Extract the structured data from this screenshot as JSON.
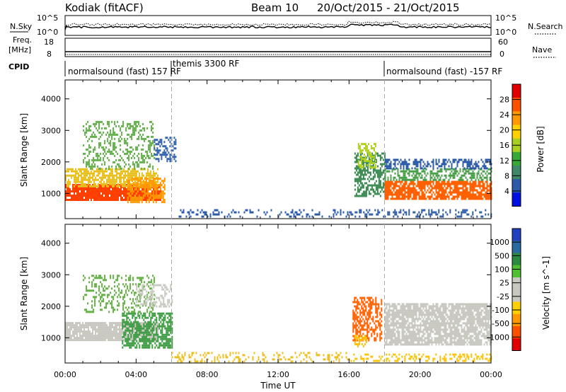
{
  "header": {
    "station": "Kodiak (fitACF)",
    "beam": "Beam 10",
    "dates": "20/Oct/2015 - 21/Oct/2015"
  },
  "top_panels": {
    "nsky_label": "N.Sky",
    "nsky_ticks": [
      "10^5",
      "10^0"
    ],
    "nsearch_label": "N.Search",
    "nsearch_ticks": [
      "10^5",
      "10^0"
    ],
    "freq_label_line1": "Freq.",
    "freq_label_line2": "[MHz]",
    "freq_ticks": [
      "18",
      "8"
    ],
    "nave_label": "Nave",
    "nave_ticks": [
      "60",
      "0"
    ],
    "cpid_label": "CPID",
    "cpid_segments": [
      {
        "text": "normalsound (fast) 157 RF",
        "start": 0
      },
      {
        "text": "themis 3300 RF",
        "start": 6
      },
      {
        "text": "normalsound (fast) -157 RF",
        "start": 18
      }
    ]
  },
  "chart_data": [
    {
      "type": "heatmap",
      "name": "power-panel",
      "ylabel": "Slant Range [km]",
      "xlim": [
        0,
        24
      ],
      "ylim": [
        200,
        4600
      ],
      "y_ticks": [
        1000,
        2000,
        3000,
        4000
      ],
      "colorbar": {
        "label": "Power [dB]",
        "ticks": [
          "28",
          "24",
          "20",
          "16",
          "12",
          "8",
          "4"
        ],
        "colors": [
          "#e00000",
          "#ff5000",
          "#ff9900",
          "#ffd000",
          "#a8d020",
          "#38a838",
          "#40886a",
          "#2a5aa8",
          "#0010e0"
        ]
      },
      "regions": [
        {
          "t": [
            0,
            5.4
          ],
          "r": [
            800,
            1300
          ],
          "color": "#ff4000",
          "density": 0.9
        },
        {
          "t": [
            0,
            5.2
          ],
          "r": [
            1200,
            1800
          ],
          "color": "#e8c020",
          "density": 0.7
        },
        {
          "t": [
            1,
            5
          ],
          "r": [
            1800,
            3300
          ],
          "color": "#60b048",
          "density": 0.35
        },
        {
          "t": [
            3.5,
            5.6
          ],
          "r": [
            700,
            1500
          ],
          "color": "#ff9900",
          "density": 0.6
        },
        {
          "t": [
            5,
            6.2
          ],
          "r": [
            2000,
            2800
          ],
          "color": "#3060b0",
          "density": 0.5
        },
        {
          "t": [
            6,
            16
          ],
          "r": [
            250,
            500
          ],
          "color": "#2a5aa8",
          "density": 0.25
        },
        {
          "t": [
            16.3,
            18
          ],
          "r": [
            900,
            2300
          ],
          "color": "#3a8a50",
          "density": 0.6
        },
        {
          "t": [
            16.5,
            17.5
          ],
          "r": [
            1800,
            2600
          ],
          "color": "#b0d020",
          "density": 0.5
        },
        {
          "t": [
            18,
            24
          ],
          "r": [
            800,
            1400
          ],
          "color": "#ff6000",
          "density": 0.8
        },
        {
          "t": [
            18,
            24
          ],
          "r": [
            1400,
            1800
          ],
          "color": "#48a048",
          "density": 0.5
        },
        {
          "t": [
            18,
            24
          ],
          "r": [
            1800,
            2100
          ],
          "color": "#2a5aa8",
          "density": 0.5
        },
        {
          "t": [
            16,
            24
          ],
          "r": [
            250,
            500
          ],
          "color": "#2a5aa8",
          "density": 0.3
        }
      ]
    },
    {
      "type": "heatmap",
      "name": "velocity-panel",
      "ylabel": "Slant Range [km]",
      "xlabel": "Time UT",
      "xlim": [
        0,
        24
      ],
      "ylim": [
        200,
        4600
      ],
      "y_ticks": [
        1000,
        2000,
        3000,
        4000
      ],
      "x_ticks": [
        "00:00",
        "04:00",
        "08:00",
        "12:00",
        "16:00",
        "20:00",
        "00:00"
      ],
      "colorbar": {
        "label": "Velocity [m s^-1]",
        "ticks": [
          "1000",
          "500",
          "100",
          "25",
          "-25",
          "-100",
          "-500",
          "-1000"
        ],
        "colors": [
          "#2040c0",
          "#2a6aa0",
          "#2a8a40",
          "#50c030",
          "#c8c8c0",
          "#c8c8c0",
          "#ffd000",
          "#ff9900",
          "#ff5000",
          "#e00000"
        ]
      },
      "regions": [
        {
          "t": [
            0,
            5.2
          ],
          "r": [
            900,
            1500
          ],
          "color": "#c8c8c0",
          "density": 0.9
        },
        {
          "t": [
            3.2,
            6
          ],
          "r": [
            700,
            1800
          ],
          "color": "#3a9a40",
          "density": 0.65
        },
        {
          "t": [
            1,
            5
          ],
          "r": [
            1800,
            3000
          ],
          "color": "#60b040",
          "density": 0.3
        },
        {
          "t": [
            4,
            6
          ],
          "r": [
            2000,
            2700
          ],
          "color": "#c8c8c0",
          "density": 0.4
        },
        {
          "t": [
            6,
            16
          ],
          "r": [
            250,
            550
          ],
          "color": "#e8c020",
          "density": 0.25
        },
        {
          "t": [
            16.2,
            17.8
          ],
          "r": [
            900,
            2300
          ],
          "color": "#ff6000",
          "density": 0.6
        },
        {
          "t": [
            16.3,
            17
          ],
          "r": [
            700,
            1100
          ],
          "color": "#ffc000",
          "density": 0.5
        },
        {
          "t": [
            18,
            24
          ],
          "r": [
            800,
            2100
          ],
          "color": "#c8c8c0",
          "density": 0.8
        },
        {
          "t": [
            16,
            24
          ],
          "r": [
            250,
            500
          ],
          "color": "#ffc000",
          "density": 0.3
        }
      ]
    }
  ]
}
